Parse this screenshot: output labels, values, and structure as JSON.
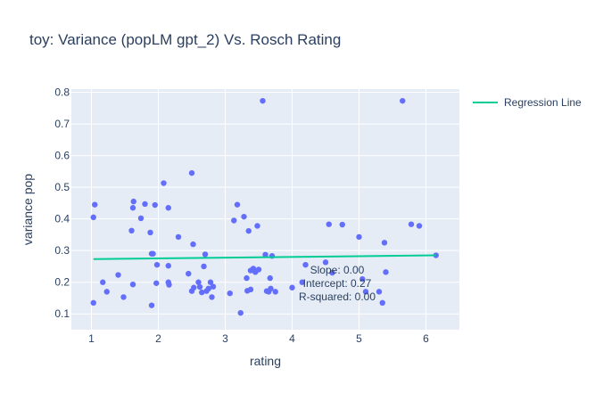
{
  "chart_data": {
    "type": "scatter",
    "title": "toy: Variance (popLM gpt_2) Vs. Rosch Rating",
    "xlabel": "rating",
    "ylabel": "variance pop",
    "xlim": [
      0.7,
      6.5
    ],
    "ylim": [
      0.05,
      0.81
    ],
    "xticks": [
      "1",
      "2",
      "3",
      "4",
      "5",
      "6"
    ],
    "yticks": [
      "0.1",
      "0.2",
      "0.3",
      "0.4",
      "0.5",
      "0.6",
      "0.7",
      "0.8"
    ],
    "grid": true,
    "background": "#e5ecf6",
    "marker_color": "#636efa",
    "legend_position": "top-right",
    "series": [
      {
        "mode": "markers",
        "points": [
          [
            1.03,
            0.135
          ],
          [
            1.03,
            0.405
          ],
          [
            1.05,
            0.445
          ],
          [
            1.17,
            0.2
          ],
          [
            1.23,
            0.17
          ],
          [
            1.4,
            0.223
          ],
          [
            1.48,
            0.153
          ],
          [
            1.6,
            0.363
          ],
          [
            1.62,
            0.193
          ],
          [
            1.62,
            0.435
          ],
          [
            1.63,
            0.455
          ],
          [
            1.74,
            0.402
          ],
          [
            1.8,
            0.447
          ],
          [
            1.88,
            0.357
          ],
          [
            1.9,
            0.29
          ],
          [
            1.9,
            0.127
          ],
          [
            1.92,
            0.29
          ],
          [
            1.95,
            0.444
          ],
          [
            1.97,
            0.197
          ],
          [
            1.98,
            0.255
          ],
          [
            2.08,
            0.513
          ],
          [
            2.15,
            0.435
          ],
          [
            2.15,
            0.252
          ],
          [
            2.15,
            0.2
          ],
          [
            2.16,
            0.192
          ],
          [
            2.3,
            0.343
          ],
          [
            2.45,
            0.227
          ],
          [
            2.5,
            0.545
          ],
          [
            2.5,
            0.172
          ],
          [
            2.52,
            0.32
          ],
          [
            2.53,
            0.183
          ],
          [
            2.6,
            0.2
          ],
          [
            2.62,
            0.185
          ],
          [
            2.65,
            0.168
          ],
          [
            2.68,
            0.25
          ],
          [
            2.7,
            0.288
          ],
          [
            2.72,
            0.172
          ],
          [
            2.75,
            0.18
          ],
          [
            2.78,
            0.2
          ],
          [
            2.8,
            0.153
          ],
          [
            2.82,
            0.186
          ],
          [
            3.07,
            0.165
          ],
          [
            3.13,
            0.395
          ],
          [
            3.18,
            0.445
          ],
          [
            3.23,
            0.103
          ],
          [
            3.28,
            0.407
          ],
          [
            3.32,
            0.213
          ],
          [
            3.33,
            0.173
          ],
          [
            3.35,
            0.362
          ],
          [
            3.38,
            0.177
          ],
          [
            3.38,
            0.237
          ],
          [
            3.42,
            0.243
          ],
          [
            3.45,
            0.232
          ],
          [
            3.48,
            0.378
          ],
          [
            3.5,
            0.24
          ],
          [
            3.56,
            0.773
          ],
          [
            3.6,
            0.287
          ],
          [
            3.62,
            0.172
          ],
          [
            3.65,
            0.17
          ],
          [
            3.67,
            0.213
          ],
          [
            3.68,
            0.18
          ],
          [
            3.7,
            0.283
          ],
          [
            3.75,
            0.17
          ],
          [
            4.0,
            0.183
          ],
          [
            4.15,
            0.2
          ],
          [
            4.2,
            0.255
          ],
          [
            4.5,
            0.263
          ],
          [
            4.55,
            0.383
          ],
          [
            4.6,
            0.23
          ],
          [
            4.75,
            0.382
          ],
          [
            5.0,
            0.343
          ],
          [
            5.05,
            0.21
          ],
          [
            5.1,
            0.17
          ],
          [
            5.3,
            0.17
          ],
          [
            5.35,
            0.135
          ],
          [
            5.38,
            0.325
          ],
          [
            5.4,
            0.232
          ],
          [
            5.65,
            0.773
          ],
          [
            5.78,
            0.383
          ],
          [
            5.9,
            0.378
          ],
          [
            6.15,
            0.285
          ]
        ]
      },
      {
        "name": "Regression Line",
        "mode": "line",
        "color": "#00cc96",
        "x": [
          1.03,
          6.15
        ],
        "y": [
          0.273,
          0.285
        ]
      }
    ],
    "annotations": [
      "Slope: 0.00",
      "Intercept: 0.27",
      "R-squared: 0.00"
    ]
  }
}
